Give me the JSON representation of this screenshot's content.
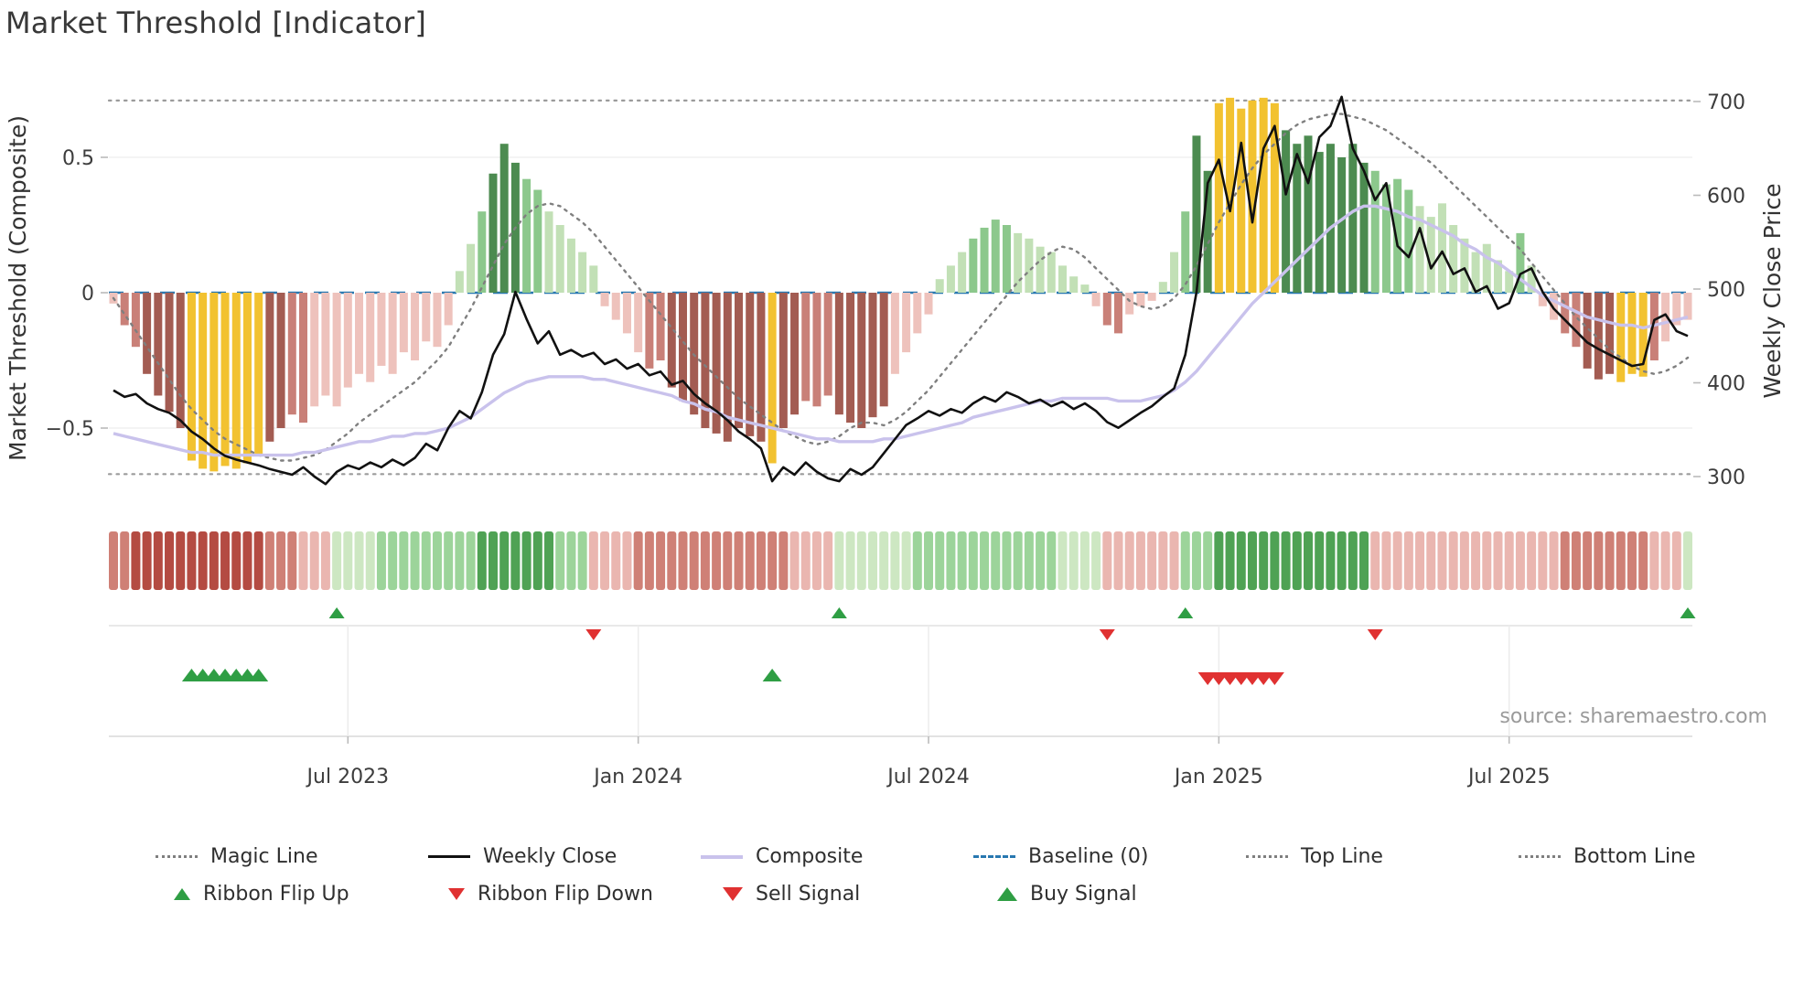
{
  "page": {
    "title": "Market Threshold [Indicator]",
    "source": "source: sharemaestro.com"
  },
  "legend": {
    "row1": [
      {
        "label": "Magic Line",
        "swatch": "dotted-gray"
      },
      {
        "label": "Weekly Close",
        "swatch": "solid-black"
      },
      {
        "label": "Composite",
        "swatch": "solid-lavender"
      },
      {
        "label": "Baseline (0)",
        "swatch": "dashed-blue"
      },
      {
        "label": "Top Line",
        "swatch": "dotted-gray"
      },
      {
        "label": "Bottom Line",
        "swatch": "dotted-gray"
      }
    ],
    "row2": [
      {
        "label": "Ribbon Flip Up",
        "swatch": "triangle-up-green"
      },
      {
        "label": "Ribbon Flip Down",
        "swatch": "triangle-down-red"
      },
      {
        "label": "Sell Signal",
        "swatch": "triangle-down-red"
      },
      {
        "label": "Buy Signal",
        "swatch": "triangle-up-green"
      }
    ]
  },
  "chart_data": {
    "type": "bar+line combo with signal ribbon",
    "title": "Market Threshold [Indicator]",
    "x_unit": "week",
    "weeks": 142,
    "x_ticks": [
      {
        "week": 21,
        "label": "Jul 2023"
      },
      {
        "week": 47,
        "label": "Jan 2024"
      },
      {
        "week": 73,
        "label": "Jul 2024"
      },
      {
        "week": 99,
        "label": "Jan 2025"
      },
      {
        "week": 125,
        "label": "Jul 2025"
      }
    ],
    "left_axis": {
      "label": "Market Threshold (Composite)",
      "range": [
        -0.78,
        0.8
      ],
      "ticks": [
        {
          "v": 0.5,
          "label": "0.5"
        },
        {
          "v": 0,
          "label": "0"
        },
        {
          "v": -0.5,
          "label": "−0.5"
        }
      ]
    },
    "right_axis": {
      "label": "Weekly Close Price",
      "range": [
        280,
        720
      ],
      "ticks": [
        {
          "v": 700,
          "label": "700"
        },
        {
          "v": 600,
          "label": "600"
        },
        {
          "v": 500,
          "label": "500"
        },
        {
          "v": 400,
          "label": "400"
        },
        {
          "v": 300,
          "label": "300"
        }
      ]
    },
    "reference_lines": {
      "baseline": 0,
      "top_line": 0.71,
      "bottom_line": -0.67
    },
    "bars": {
      "name": "Threshold Histogram",
      "axis": "left",
      "values": [
        -0.04,
        -0.12,
        -0.2,
        -0.3,
        -0.38,
        -0.44,
        -0.5,
        -0.62,
        -0.65,
        -0.66,
        -0.64,
        -0.65,
        -0.63,
        -0.6,
        -0.55,
        -0.5,
        -0.45,
        -0.48,
        -0.42,
        -0.38,
        -0.42,
        -0.35,
        -0.3,
        -0.33,
        -0.27,
        -0.3,
        -0.22,
        -0.25,
        -0.18,
        -0.2,
        -0.12,
        0.08,
        0.18,
        0.3,
        0.44,
        0.55,
        0.48,
        0.42,
        0.38,
        0.3,
        0.25,
        0.2,
        0.15,
        0.1,
        -0.05,
        -0.1,
        -0.15,
        -0.22,
        -0.28,
        -0.25,
        -0.35,
        -0.4,
        -0.45,
        -0.5,
        -0.52,
        -0.55,
        -0.5,
        -0.53,
        -0.55,
        -0.63,
        -0.5,
        -0.45,
        -0.4,
        -0.42,
        -0.38,
        -0.45,
        -0.48,
        -0.5,
        -0.46,
        -0.42,
        -0.3,
        -0.22,
        -0.15,
        -0.08,
        0.05,
        0.1,
        0.15,
        0.2,
        0.24,
        0.27,
        0.25,
        0.22,
        0.2,
        0.17,
        0.15,
        0.1,
        0.06,
        0.03,
        -0.05,
        -0.12,
        -0.15,
        -0.08,
        -0.05,
        -0.03,
        0.04,
        0.15,
        0.3,
        0.58,
        0.45,
        0.7,
        0.72,
        0.68,
        0.71,
        0.72,
        0.7,
        0.6,
        0.55,
        0.58,
        0.52,
        0.55,
        0.5,
        0.55,
        0.48,
        0.45,
        0.4,
        0.42,
        0.38,
        0.32,
        0.28,
        0.33,
        0.25,
        0.2,
        0.15,
        0.18,
        0.12,
        0.08,
        0.22,
        0.1,
        -0.05,
        -0.1,
        -0.15,
        -0.2,
        -0.28,
        -0.32,
        -0.3,
        -0.33,
        -0.3,
        -0.31,
        -0.25,
        -0.18,
        -0.12,
        -0.1
      ],
      "colors": [
        "p",
        "r",
        "r",
        "d",
        "d",
        "d",
        "d",
        "g",
        "g",
        "g",
        "g",
        "g",
        "g",
        "g",
        "d",
        "d",
        "r",
        "r",
        "p",
        "p",
        "p",
        "p",
        "p",
        "p",
        "p",
        "p",
        "p",
        "p",
        "p",
        "p",
        "p",
        "l",
        "l",
        "m",
        "k",
        "k",
        "k",
        "m",
        "m",
        "l",
        "l",
        "l",
        "l",
        "l",
        "p",
        "p",
        "p",
        "p",
        "r",
        "r",
        "d",
        "d",
        "d",
        "d",
        "d",
        "d",
        "d",
        "d",
        "d",
        "g",
        "d",
        "d",
        "r",
        "r",
        "r",
        "d",
        "d",
        "d",
        "d",
        "d",
        "p",
        "p",
        "p",
        "p",
        "l",
        "l",
        "l",
        "m",
        "m",
        "m",
        "m",
        "l",
        "l",
        "l",
        "l",
        "l",
        "l",
        "l",
        "p",
        "r",
        "r",
        "p",
        "p",
        "p",
        "l",
        "l",
        "m",
        "k",
        "k",
        "g",
        "g",
        "g",
        "g",
        "g",
        "g",
        "k",
        "k",
        "k",
        "k",
        "k",
        "k",
        "k",
        "k",
        "m",
        "m",
        "m",
        "m",
        "l",
        "l",
        "l",
        "l",
        "l",
        "l",
        "l",
        "l",
        "l",
        "m",
        "l",
        "p",
        "p",
        "r",
        "r",
        "d",
        "d",
        "d",
        "g",
        "g",
        "g",
        "r",
        "p",
        "p",
        "p"
      ]
    },
    "lines": [
      {
        "name": "Magic Line",
        "axis": "left",
        "style": "dotted",
        "color_key": "magic",
        "values": [
          -0.02,
          -0.08,
          -0.14,
          -0.2,
          -0.26,
          -0.32,
          -0.38,
          -0.43,
          -0.47,
          -0.51,
          -0.54,
          -0.56,
          -0.58,
          -0.6,
          -0.61,
          -0.62,
          -0.62,
          -0.61,
          -0.6,
          -0.58,
          -0.55,
          -0.52,
          -0.48,
          -0.45,
          -0.42,
          -0.39,
          -0.36,
          -0.33,
          -0.29,
          -0.25,
          -0.2,
          -0.13,
          -0.06,
          0.02,
          0.1,
          0.18,
          0.24,
          0.29,
          0.32,
          0.33,
          0.32,
          0.29,
          0.26,
          0.22,
          0.17,
          0.12,
          0.07,
          0.02,
          -0.03,
          -0.08,
          -0.13,
          -0.18,
          -0.23,
          -0.27,
          -0.31,
          -0.35,
          -0.39,
          -0.42,
          -0.45,
          -0.48,
          -0.51,
          -0.53,
          -0.55,
          -0.56,
          -0.55,
          -0.53,
          -0.5,
          -0.48,
          -0.48,
          -0.49,
          -0.47,
          -0.44,
          -0.4,
          -0.36,
          -0.31,
          -0.26,
          -0.21,
          -0.16,
          -0.11,
          -0.06,
          -0.01,
          0.04,
          0.08,
          0.12,
          0.15,
          0.17,
          0.16,
          0.13,
          0.09,
          0.05,
          0.01,
          -0.03,
          -0.05,
          -0.06,
          -0.05,
          -0.02,
          0.03,
          0.1,
          0.18,
          0.26,
          0.33,
          0.4,
          0.46,
          0.51,
          0.55,
          0.59,
          0.62,
          0.64,
          0.65,
          0.66,
          0.66,
          0.65,
          0.64,
          0.62,
          0.6,
          0.57,
          0.54,
          0.51,
          0.48,
          0.44,
          0.4,
          0.36,
          0.32,
          0.28,
          0.24,
          0.2,
          0.16,
          0.11,
          0.06,
          0.01,
          -0.04,
          -0.09,
          -0.13,
          -0.17,
          -0.21,
          -0.24,
          -0.27,
          -0.29,
          -0.3,
          -0.29,
          -0.27,
          -0.24
        ]
      },
      {
        "name": "Composite",
        "axis": "left",
        "style": "solid",
        "color_key": "composite",
        "values": [
          -0.52,
          -0.53,
          -0.54,
          -0.55,
          -0.56,
          -0.57,
          -0.58,
          -0.59,
          -0.59,
          -0.6,
          -0.6,
          -0.6,
          -0.6,
          -0.6,
          -0.6,
          -0.6,
          -0.6,
          -0.59,
          -0.59,
          -0.58,
          -0.57,
          -0.56,
          -0.55,
          -0.55,
          -0.54,
          -0.53,
          -0.53,
          -0.52,
          -0.52,
          -0.51,
          -0.5,
          -0.48,
          -0.46,
          -0.43,
          -0.4,
          -0.37,
          -0.35,
          -0.33,
          -0.32,
          -0.31,
          -0.31,
          -0.31,
          -0.31,
          -0.32,
          -0.32,
          -0.33,
          -0.34,
          -0.35,
          -0.36,
          -0.37,
          -0.38,
          -0.4,
          -0.41,
          -0.43,
          -0.44,
          -0.46,
          -0.47,
          -0.48,
          -0.49,
          -0.5,
          -0.51,
          -0.52,
          -0.53,
          -0.54,
          -0.54,
          -0.55,
          -0.55,
          -0.55,
          -0.55,
          -0.54,
          -0.54,
          -0.53,
          -0.52,
          -0.51,
          -0.5,
          -0.49,
          -0.48,
          -0.46,
          -0.45,
          -0.44,
          -0.43,
          -0.42,
          -0.41,
          -0.4,
          -0.4,
          -0.39,
          -0.39,
          -0.39,
          -0.39,
          -0.39,
          -0.4,
          -0.4,
          -0.4,
          -0.39,
          -0.38,
          -0.36,
          -0.33,
          -0.29,
          -0.24,
          -0.19,
          -0.14,
          -0.09,
          -0.04,
          0,
          0.04,
          0.08,
          0.12,
          0.16,
          0.2,
          0.24,
          0.27,
          0.3,
          0.32,
          0.32,
          0.31,
          0.3,
          0.28,
          0.27,
          0.25,
          0.23,
          0.21,
          0.18,
          0.16,
          0.13,
          0.11,
          0.08,
          0.05,
          0.02,
          -0.01,
          -0.03,
          -0.05,
          -0.07,
          -0.09,
          -0.1,
          -0.11,
          -0.12,
          -0.12,
          -0.13,
          -0.12,
          -0.11,
          -0.1,
          -0.09
        ]
      },
      {
        "name": "Weekly Close",
        "axis": "right",
        "style": "solid",
        "color_key": "close",
        "values": [
          392,
          385,
          388,
          378,
          372,
          368,
          360,
          348,
          340,
          330,
          322,
          318,
          315,
          312,
          308,
          305,
          302,
          310,
          300,
          292,
          305,
          312,
          308,
          315,
          310,
          318,
          312,
          320,
          335,
          328,
          352,
          370,
          362,
          390,
          430,
          452,
          497,
          468,
          442,
          455,
          430,
          435,
          428,
          432,
          420,
          425,
          415,
          420,
          408,
          412,
          398,
          402,
          388,
          378,
          370,
          360,
          348,
          340,
          330,
          295,
          310,
          302,
          315,
          305,
          298,
          295,
          308,
          302,
          310,
          325,
          340,
          355,
          362,
          370,
          365,
          372,
          368,
          378,
          385,
          380,
          390,
          385,
          378,
          382,
          375,
          380,
          372,
          378,
          370,
          358,
          352,
          360,
          368,
          375,
          385,
          394,
          430,
          497,
          613,
          638,
          583,
          656,
          571,
          650,
          674,
          601,
          644,
          613,
          662,
          674,
          705,
          650,
          626,
          595,
          613,
          546,
          534,
          565,
          522,
          540,
          516,
          522,
          497,
          503,
          479,
          485,
          516,
          522,
          497,
          479,
          467,
          455,
          443,
          436,
          430,
          424,
          418,
          420,
          467,
          473,
          455,
          450
        ]
      }
    ],
    "ribbon": [
      -2,
      -2,
      -3,
      -3,
      -3,
      -3,
      -3,
      -3,
      -3,
      -3,
      -3,
      -3,
      -3,
      -3,
      -2,
      -2,
      -2,
      -1,
      -1,
      -1,
      1,
      1,
      1,
      1,
      2,
      2,
      2,
      2,
      2,
      2,
      2,
      2,
      2,
      3,
      3,
      3,
      3,
      3,
      3,
      3,
      2,
      2,
      2,
      -1,
      -1,
      -1,
      -1,
      -2,
      -2,
      -2,
      -2,
      -2,
      -2,
      -2,
      -2,
      -2,
      -2,
      -2,
      -2,
      -2,
      -2,
      -1,
      -1,
      -1,
      -1,
      1,
      1,
      1,
      1,
      1,
      1,
      1,
      2,
      2,
      2,
      2,
      2,
      2,
      2,
      2,
      2,
      2,
      2,
      2,
      2,
      1,
      1,
      1,
      1,
      -1,
      -1,
      -1,
      -1,
      -1,
      -1,
      -1,
      2,
      2,
      2,
      3,
      3,
      3,
      3,
      3,
      3,
      3,
      3,
      3,
      3,
      3,
      3,
      3,
      3,
      -1,
      -1,
      -1,
      -1,
      -1,
      -1,
      -1,
      -1,
      -1,
      -1,
      -1,
      -1,
      -1,
      -1,
      -1,
      -1,
      -1,
      -2,
      -2,
      -2,
      -2,
      -2,
      -2,
      -2,
      -2,
      -1,
      -1,
      -1,
      1
    ],
    "signals": {
      "ribbon_flip_up": [
        20,
        65,
        96,
        141
      ],
      "ribbon_flip_down": [
        43,
        89,
        113
      ],
      "buy": [
        7,
        8,
        9,
        10,
        11,
        12,
        13,
        59
      ],
      "sell": [
        98,
        99,
        100,
        101,
        102,
        103,
        104
      ]
    },
    "palette": {
      "bar_colors": {
        "p": "#eec2bc",
        "r": "#c98078",
        "d": "#a35c52",
        "g": "#f2c230",
        "l": "#c2e0b6",
        "m": "#8cc88c",
        "k": "#4c8b50"
      },
      "ribbon_colors": {
        "-3": "#b44b42",
        "-2": "#cf8076",
        "-1": "#eab6b0",
        "0": "#f5d8d4",
        "1": "#cde7c2",
        "2": "#9cd49a",
        "3": "#4fa254"
      },
      "line_colors": {
        "magic": "#7f7f7f",
        "close": "#111111",
        "composite": "#c9c2ec",
        "baseline": "#2878b0",
        "top_bottom": "#9b9b9b"
      },
      "signal_colors": {
        "up": "#2f9e44",
        "down": "#e03131",
        "buy": "#2f9e44",
        "sell": "#e03131"
      }
    }
  }
}
